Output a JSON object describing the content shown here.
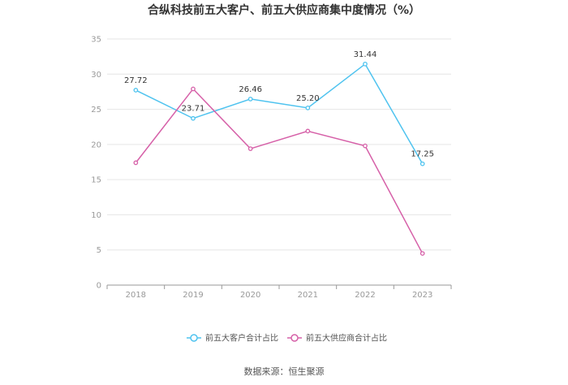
{
  "chart_data": {
    "type": "line",
    "title": "合纵科技前五大客户、前五大供应商集中度情况（%）",
    "categories": [
      "2018",
      "2019",
      "2020",
      "2021",
      "2022",
      "2023"
    ],
    "ylim": [
      0,
      35
    ],
    "yticks": [
      0,
      5,
      10,
      15,
      20,
      25,
      30,
      35
    ],
    "grid": true,
    "legend_position": "bottom",
    "series": [
      {
        "name": "前五大客户合计占比",
        "color": "#4fc3ef",
        "values": [
          27.72,
          23.71,
          26.46,
          25.2,
          31.44,
          17.25
        ],
        "labels": [
          "27.72",
          "23.71",
          "26.46",
          "25.20",
          "31.44",
          "17.25"
        ]
      },
      {
        "name": "前五大供应商合计占比",
        "color": "#d660a8",
        "values": [
          17.4,
          27.9,
          19.4,
          21.9,
          19.8,
          4.5
        ],
        "labels": []
      }
    ],
    "source": "数据来源：恒生聚源"
  }
}
